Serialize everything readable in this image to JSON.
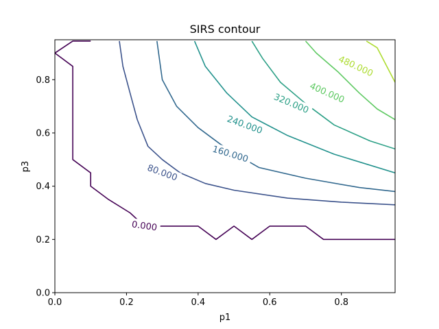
{
  "chart_data": {
    "type": "contour",
    "title": "SIRS contour",
    "xlabel": "p1",
    "ylabel": "p3",
    "xlim": [
      0,
      0.95
    ],
    "ylim": [
      0,
      0.95
    ],
    "xticks": [
      "0.0",
      "0.2",
      "0.4",
      "0.6",
      "0.8"
    ],
    "yticks": [
      "0.0",
      "0.2",
      "0.4",
      "0.6",
      "0.8"
    ],
    "grid": false,
    "levels": [
      {
        "value": 0,
        "label": "0.000",
        "color": "#440154",
        "points": [
          [
            0.1,
            0.945
          ],
          [
            0.05,
            0.945
          ],
          [
            0.0,
            0.9
          ],
          [
            0.05,
            0.85
          ],
          [
            0.05,
            0.5
          ],
          [
            0.1,
            0.45
          ],
          [
            0.1,
            0.4
          ],
          [
            0.15,
            0.35
          ],
          [
            0.21,
            0.3
          ],
          [
            0.25,
            0.25
          ],
          [
            0.4,
            0.25
          ],
          [
            0.45,
            0.2
          ],
          [
            0.5,
            0.25
          ],
          [
            0.55,
            0.2
          ],
          [
            0.6,
            0.25
          ],
          [
            0.7,
            0.25
          ],
          [
            0.75,
            0.2
          ],
          [
            0.95,
            0.2
          ]
        ],
        "labelAt": [
          0.25,
          0.25
        ],
        "labelAngle": 8
      },
      {
        "value": 80,
        "label": "80.000",
        "color": "#3b528b",
        "points": [
          [
            0.18,
            0.945
          ],
          [
            0.19,
            0.85
          ],
          [
            0.21,
            0.75
          ],
          [
            0.23,
            0.65
          ],
          [
            0.26,
            0.55
          ],
          [
            0.3,
            0.5
          ],
          [
            0.35,
            0.45
          ],
          [
            0.42,
            0.41
          ],
          [
            0.5,
            0.385
          ],
          [
            0.65,
            0.355
          ],
          [
            0.8,
            0.34
          ],
          [
            0.95,
            0.33
          ]
        ],
        "labelAt": [
          0.3,
          0.45
        ],
        "labelAngle": 20
      },
      {
        "value": 160,
        "label": "160.000",
        "color": "#31688e",
        "points": [
          [
            0.285,
            0.945
          ],
          [
            0.3,
            0.8
          ],
          [
            0.34,
            0.7
          ],
          [
            0.4,
            0.62
          ],
          [
            0.48,
            0.54
          ],
          [
            0.57,
            0.47
          ],
          [
            0.7,
            0.43
          ],
          [
            0.85,
            0.395
          ],
          [
            0.95,
            0.38
          ]
        ],
        "labelAt": [
          0.49,
          0.52
        ],
        "labelAngle": 17
      },
      {
        "value": 240,
        "label": "240.000",
        "color": "#21918c",
        "points": [
          [
            0.39,
            0.945
          ],
          [
            0.42,
            0.85
          ],
          [
            0.48,
            0.75
          ],
          [
            0.55,
            0.66
          ],
          [
            0.65,
            0.59
          ],
          [
            0.78,
            0.52
          ],
          [
            0.95,
            0.45
          ]
        ],
        "labelAt": [
          0.53,
          0.63
        ],
        "labelAngle": 20
      },
      {
        "value": 320,
        "label": "320.000",
        "color": "#2a9f85",
        "points": [
          [
            0.55,
            0.945
          ],
          [
            0.58,
            0.88
          ],
          [
            0.63,
            0.79
          ],
          [
            0.7,
            0.71
          ],
          [
            0.78,
            0.63
          ],
          [
            0.88,
            0.57
          ],
          [
            0.95,
            0.54
          ]
        ],
        "labelAt": [
          0.66,
          0.71
        ],
        "labelAngle": 23
      },
      {
        "value": 400,
        "label": "400.000",
        "color": "#5ec962",
        "points": [
          [
            0.7,
            0.945
          ],
          [
            0.73,
            0.9
          ],
          [
            0.79,
            0.83
          ],
          [
            0.85,
            0.75
          ],
          [
            0.9,
            0.69
          ],
          [
            0.95,
            0.65
          ]
        ],
        "labelAt": [
          0.76,
          0.75
        ],
        "labelAngle": 24
      },
      {
        "value": 480,
        "label": "480.000",
        "color": "#addc30",
        "points": [
          [
            0.87,
            0.945
          ],
          [
            0.9,
            0.92
          ],
          [
            0.95,
            0.79
          ]
        ],
        "labelAt": [
          0.84,
          0.85
        ],
        "labelAngle": 25
      }
    ]
  }
}
